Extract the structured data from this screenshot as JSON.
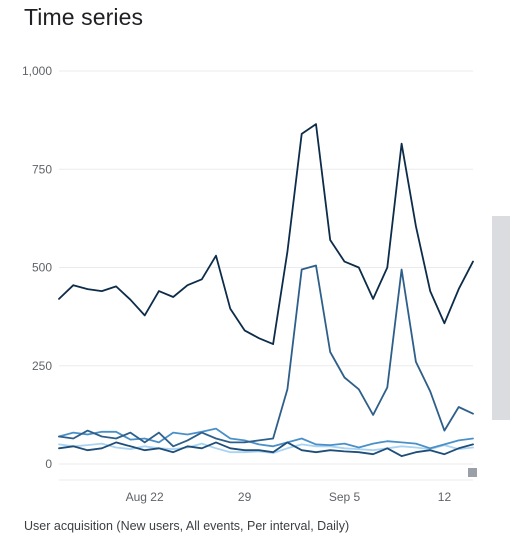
{
  "title": "Time series",
  "caption": "User acquisition (New users, All events, Per interval, Daily)",
  "chart_data": {
    "type": "line",
    "title": "Time series",
    "xlabel": "",
    "ylabel": "",
    "x": [
      1,
      2,
      3,
      4,
      5,
      6,
      7,
      8,
      9,
      10,
      11,
      12,
      13,
      14,
      15,
      16,
      17,
      18,
      19,
      20,
      21,
      22,
      23,
      24,
      25,
      26,
      27,
      28,
      29,
      30
    ],
    "x_ticks": [
      {
        "x": 7,
        "label": "Aug 22"
      },
      {
        "x": 14,
        "label": "29"
      },
      {
        "x": 21,
        "label": "Sep 5"
      },
      {
        "x": 28,
        "label": "12"
      }
    ],
    "y_ticks": [
      {
        "y": 0,
        "label": "0"
      },
      {
        "y": 250,
        "label": "250"
      },
      {
        "y": 500,
        "label": "500"
      },
      {
        "y": 750,
        "label": "750"
      },
      {
        "y": 1000,
        "label": "1,000"
      }
    ],
    "xlim": [
      1,
      30
    ],
    "ylim": [
      0,
      1000
    ],
    "grid": true,
    "series": [
      {
        "color": "#0d2c4a",
        "values": [
          420,
          455,
          445,
          440,
          452,
          418,
          378,
          440,
          425,
          455,
          470,
          530,
          395,
          340,
          320,
          305,
          540,
          840,
          865,
          570,
          515,
          500,
          420,
          500,
          815,
          605,
          440,
          358,
          445,
          515
        ]
      },
      {
        "color": "#1f4e79",
        "values": [
          40,
          45,
          35,
          40,
          55,
          45,
          35,
          40,
          30,
          45,
          40,
          55,
          40,
          35,
          35,
          30,
          55,
          35,
          30,
          35,
          32,
          30,
          25,
          40,
          20,
          30,
          35,
          25,
          40,
          50
        ]
      },
      {
        "color": "#2e5f8a",
        "values": [
          70,
          65,
          85,
          70,
          65,
          80,
          55,
          80,
          45,
          60,
          80,
          65,
          55,
          55,
          60,
          65,
          190,
          495,
          505,
          285,
          220,
          190,
          125,
          195,
          495,
          260,
          185,
          85,
          145,
          128
        ]
      },
      {
        "color": "#4a90c8",
        "values": [
          70,
          80,
          75,
          82,
          82,
          62,
          65,
          55,
          80,
          75,
          82,
          90,
          65,
          60,
          50,
          45,
          55,
          65,
          50,
          48,
          52,
          42,
          52,
          58,
          55,
          52,
          40,
          50,
          60,
          65
        ]
      },
      {
        "color": "#a9d3f2",
        "values": [
          50,
          45,
          48,
          52,
          42,
          38,
          45,
          40,
          38,
          42,
          52,
          40,
          30,
          30,
          32,
          28,
          40,
          50,
          45,
          45,
          40,
          38,
          35,
          40,
          45,
          42,
          38,
          48,
          38,
          42
        ]
      }
    ]
  }
}
